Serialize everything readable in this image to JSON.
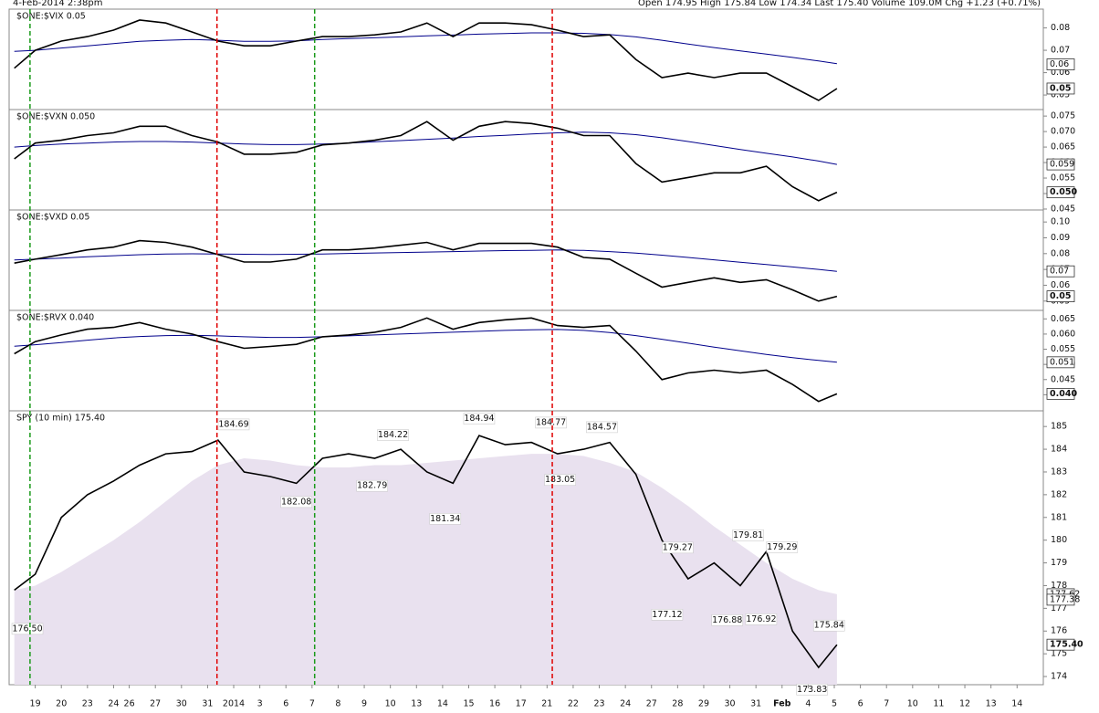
{
  "header": {
    "date": "4-Feb-2014 2:38pm",
    "quote": "Open 174.95  High 175.84  Low 174.34  Last 175.40  Volume 109.0M  Chg +1.23 (+0.71%)"
  },
  "vertical_lines": [
    {
      "x": -0.2,
      "color": "#1a9a1a"
    },
    {
      "x": 6.96,
      "color": "#e00000"
    },
    {
      "x": 10.7,
      "color": "#1a9a1a"
    },
    {
      "x": 19.8,
      "color": "#e00000"
    }
  ],
  "chart_data": [
    {
      "type": "line",
      "title": "$ONE:$VIX 0.05",
      "xlim": [
        -1,
        38.5
      ],
      "ylim": [
        0.0435,
        0.0884
      ],
      "yticks": [
        0.05,
        0.06,
        0.07,
        0.08
      ],
      "x": [
        -0.8,
        0,
        1,
        2,
        3,
        4,
        5,
        6,
        7,
        8,
        9,
        10,
        11,
        12,
        13,
        14,
        15,
        16,
        17,
        18,
        19,
        20,
        21,
        22,
        23,
        24,
        25,
        26,
        27,
        28,
        29,
        30,
        30.7
      ],
      "series": [
        {
          "color": "#00008b",
          "values": [
            0.0695,
            0.07,
            0.071,
            0.072,
            0.073,
            0.074,
            0.0745,
            0.0748,
            0.0745,
            0.074,
            0.074,
            0.0742,
            0.0748,
            0.0752,
            0.0756,
            0.076,
            0.0765,
            0.0768,
            0.0772,
            0.0775,
            0.0778,
            0.0778,
            0.0776,
            0.077,
            0.076,
            0.0745,
            0.0728,
            0.0712,
            0.0697,
            0.0683,
            0.0668,
            0.0652,
            0.064
          ]
        },
        {
          "color": "#000000",
          "values": [
            0.062,
            0.07,
            0.0741,
            0.0761,
            0.079,
            0.0835,
            0.0822,
            0.0782,
            0.0741,
            0.072,
            0.072,
            0.0741,
            0.0761,
            0.0761,
            0.0769,
            0.0782,
            0.0822,
            0.0761,
            0.0822,
            0.0822,
            0.0814,
            0.079,
            0.0761,
            0.0769,
            0.0659,
            0.0578,
            0.0598,
            0.0578,
            0.0598,
            0.0598,
            0.0537,
            0.0476,
            0.0529
          ]
        }
      ],
      "value_tags": [
        {
          "value": 0.0637,
          "label": "0.06"
        },
        {
          "value": 0.0529,
          "label": "0.05"
        }
      ]
    },
    {
      "type": "line",
      "title": "$ONE:$VXN 0.050",
      "xlim": [
        -1,
        38.5
      ],
      "ylim": [
        0.0447,
        0.0771
      ],
      "yticks": [
        0.045,
        {
          "value": 0.05,
          "label": "0.050"
        },
        0.055,
        {
          "value": 0.06,
          "label": "0.060"
        },
        0.065,
        {
          "value": 0.07,
          "label": "0.070"
        },
        0.075
      ],
      "x": [
        -0.8,
        0,
        1,
        2,
        3,
        4,
        5,
        6,
        7,
        8,
        9,
        10,
        11,
        12,
        13,
        14,
        15,
        16,
        17,
        18,
        19,
        20,
        21,
        22,
        23,
        24,
        25,
        26,
        27,
        28,
        29,
        30,
        30.7
      ],
      "series": [
        {
          "color": "#00008b",
          "values": [
            0.065,
            0.0655,
            0.066,
            0.0663,
            0.0666,
            0.0668,
            0.0668,
            0.0666,
            0.0663,
            0.066,
            0.0658,
            0.0658,
            0.066,
            0.0663,
            0.0667,
            0.0671,
            0.0675,
            0.0679,
            0.0684,
            0.0688,
            0.0692,
            0.0696,
            0.0698,
            0.0696,
            0.069,
            0.068,
            0.0668,
            0.0655,
            0.0642,
            0.063,
            0.0618,
            0.0605,
            0.0594
          ]
        },
        {
          "color": "#000000",
          "values": [
            0.0612,
            0.0663,
            0.0672,
            0.0687,
            0.0696,
            0.0717,
            0.0717,
            0.0687,
            0.0666,
            0.0627,
            0.0627,
            0.0633,
            0.0657,
            0.0663,
            0.0672,
            0.0687,
            0.0732,
            0.0672,
            0.0717,
            0.0732,
            0.0726,
            0.0711,
            0.0687,
            0.0687,
            0.0597,
            0.0537,
            0.0552,
            0.0567,
            0.0567,
            0.0588,
            0.0522,
            0.0477,
            0.0504
          ]
        }
      ],
      "value_tags": [
        {
          "value": 0.0594,
          "label": "0.059"
        },
        {
          "value": 0.0504,
          "label": "0.050"
        }
      ]
    },
    {
      "type": "line",
      "title": "$ONE:$VXD 0.05",
      "xlim": [
        -1,
        38.5
      ],
      "ylim": [
        0.0441,
        0.1076
      ],
      "yticks": [
        0.05,
        0.06,
        0.07,
        0.08,
        0.09,
        {
          "value": 0.1,
          "label": "0.10"
        }
      ],
      "x": [
        -0.8,
        0,
        1,
        2,
        3,
        4,
        5,
        6,
        7,
        8,
        9,
        10,
        11,
        12,
        13,
        14,
        15,
        16,
        17,
        18,
        19,
        20,
        21,
        22,
        23,
        24,
        25,
        26,
        27,
        28,
        29,
        30,
        30.7
      ],
      "series": [
        {
          "color": "#00008b",
          "values": [
            0.076,
            0.0765,
            0.0772,
            0.078,
            0.0787,
            0.0793,
            0.0797,
            0.0799,
            0.0798,
            0.0796,
            0.0795,
            0.0796,
            0.0798,
            0.0801,
            0.0804,
            0.0807,
            0.081,
            0.0813,
            0.0816,
            0.0819,
            0.0821,
            0.0823,
            0.082,
            0.0813,
            0.0803,
            0.079,
            0.0776,
            0.0761,
            0.0746,
            0.0731,
            0.0716,
            0.07,
            0.0688
          ]
        },
        {
          "color": "#000000",
          "values": [
            0.074,
            0.0765,
            0.0794,
            0.0824,
            0.0841,
            0.0882,
            0.0871,
            0.0841,
            0.0794,
            0.0747,
            0.0747,
            0.0765,
            0.0824,
            0.0824,
            0.0835,
            0.0853,
            0.0871,
            0.0824,
            0.0865,
            0.0865,
            0.0865,
            0.0841,
            0.0776,
            0.0765,
            0.0676,
            0.0588,
            0.0618,
            0.0647,
            0.0618,
            0.0635,
            0.0571,
            0.05,
            0.053
          ]
        }
      ],
      "value_tags": [
        {
          "value": 0.0688,
          "label": "0.07"
        },
        {
          "value": 0.053,
          "label": "0.05"
        }
      ]
    },
    {
      "type": "line",
      "title": "$ONE:$RVX 0.040",
      "xlim": [
        -1,
        38.5
      ],
      "ylim": [
        0.0347,
        0.0678
      ],
      "yticks": [
        {
          "value": 0.04,
          "label": "0.040"
        },
        0.045,
        {
          "value": 0.05,
          "label": "0.050"
        },
        0.055,
        {
          "value": 0.06,
          "label": "0.060"
        },
        0.065
      ],
      "x": [
        -0.8,
        0,
        1,
        2,
        3,
        4,
        5,
        6,
        7,
        8,
        9,
        10,
        11,
        12,
        13,
        14,
        15,
        16,
        17,
        18,
        19,
        20,
        21,
        22,
        23,
        24,
        25,
        26,
        27,
        28,
        29,
        30,
        30.7
      ],
      "series": [
        {
          "color": "#00008b",
          "values": [
            0.056,
            0.0565,
            0.0572,
            0.058,
            0.0587,
            0.0592,
            0.0595,
            0.0596,
            0.0594,
            0.0591,
            0.0589,
            0.0589,
            0.0591,
            0.0594,
            0.0597,
            0.06,
            0.0603,
            0.0606,
            0.0609,
            0.0612,
            0.0614,
            0.0615,
            0.0612,
            0.0605,
            0.0595,
            0.0583,
            0.057,
            0.0557,
            0.0545,
            0.0533,
            0.0522,
            0.0513,
            0.0507
          ]
        },
        {
          "color": "#000000",
          "values": [
            0.0535,
            0.0575,
            0.0597,
            0.0616,
            0.0622,
            0.0638,
            0.0616,
            0.06,
            0.0575,
            0.0553,
            0.0559,
            0.0566,
            0.0591,
            0.0597,
            0.0606,
            0.0622,
            0.0653,
            0.0616,
            0.0638,
            0.0647,
            0.0653,
            0.0628,
            0.0622,
            0.0628,
            0.0544,
            0.045,
            0.0472,
            0.0481,
            0.0472,
            0.0481,
            0.0434,
            0.0378,
            0.0403
          ]
        }
      ],
      "value_tags": [
        {
          "value": 0.0507,
          "label": "0.051"
        },
        {
          "value": 0.0403,
          "label": "0.040"
        }
      ]
    },
    {
      "type": "line",
      "title": "SPY (10 min) 175.40",
      "xlim": [
        -1,
        38.5
      ],
      "ylim": [
        173.64,
        185.69
      ],
      "yticks": [
        174,
        175,
        176,
        177,
        178,
        179,
        180,
        181,
        182,
        183,
        184,
        185
      ],
      "xticks": [
        {
          "value": 0,
          "label": "19"
        },
        {
          "value": 1,
          "label": "20"
        },
        {
          "value": 2,
          "label": "23"
        },
        {
          "value": 3,
          "label": "24"
        },
        {
          "value": 3.6,
          "label": "26"
        },
        {
          "value": 4.6,
          "label": "27"
        },
        {
          "value": 5.6,
          "label": "30"
        },
        {
          "value": 6.6,
          "label": "31"
        },
        {
          "value": 7.6,
          "label": "2014"
        },
        {
          "value": 8.6,
          "label": "3"
        },
        {
          "value": 9.6,
          "label": "6"
        },
        {
          "value": 10.6,
          "label": "7"
        },
        {
          "value": 11.6,
          "label": "8"
        },
        {
          "value": 12.6,
          "label": "9"
        },
        {
          "value": 13.6,
          "label": "10"
        },
        {
          "value": 14.6,
          "label": "13"
        },
        {
          "value": 15.6,
          "label": "14"
        },
        {
          "value": 16.6,
          "label": "15"
        },
        {
          "value": 17.6,
          "label": "16"
        },
        {
          "value": 18.6,
          "label": "17"
        },
        {
          "value": 19.6,
          "label": "21"
        },
        {
          "value": 20.6,
          "label": "22"
        },
        {
          "value": 21.6,
          "label": "23"
        },
        {
          "value": 22.6,
          "label": "24"
        },
        {
          "value": 23.6,
          "label": "27"
        },
        {
          "value": 24.6,
          "label": "28"
        },
        {
          "value": 25.6,
          "label": "29"
        },
        {
          "value": 26.6,
          "label": "30"
        },
        {
          "value": 27.6,
          "label": "31"
        },
        {
          "value": 28.6,
          "label": "Feb"
        },
        {
          "value": 29.6,
          "label": "4"
        },
        {
          "value": 30.6,
          "label": "5"
        },
        {
          "value": 31.6,
          "label": "6"
        },
        {
          "value": 32.6,
          "label": "7"
        },
        {
          "value": 33.6,
          "label": "10"
        },
        {
          "value": 34.6,
          "label": "11"
        },
        {
          "value": 35.6,
          "label": "12"
        },
        {
          "value": 36.6,
          "label": "13"
        },
        {
          "value": 37.6,
          "label": "14"
        }
      ],
      "x": [
        -0.8,
        0,
        1,
        2,
        3,
        4,
        5,
        6,
        7,
        8,
        9,
        10,
        11,
        12,
        13,
        14,
        15,
        16,
        17,
        18,
        19,
        20,
        21,
        22,
        23,
        24,
        25,
        26,
        27,
        28,
        29,
        30,
        30.7
      ],
      "series": [
        {
          "color": "#e9e1ef",
          "fill": true,
          "values": [
            177.8,
            178.0,
            178.6,
            179.3,
            180.0,
            180.8,
            181.7,
            182.6,
            183.3,
            183.6,
            183.5,
            183.3,
            183.2,
            183.2,
            183.3,
            183.3,
            183.4,
            183.5,
            183.6,
            183.7,
            183.8,
            183.8,
            183.7,
            183.4,
            183.0,
            182.3,
            181.5,
            180.6,
            179.8,
            179.0,
            178.3,
            177.8,
            177.62
          ]
        },
        {
          "color": "#000000",
          "values": [
            177.8,
            178.5,
            181.0,
            182.0,
            182.6,
            183.3,
            183.8,
            183.9,
            184.4,
            183.0,
            182.8,
            182.5,
            183.6,
            183.8,
            183.6,
            184.0,
            183.0,
            182.5,
            184.6,
            184.2,
            184.3,
            183.8,
            184.0,
            184.3,
            182.9,
            180.0,
            178.3,
            179.0,
            178.0,
            179.5,
            176.0,
            174.4,
            175.4
          ]
        }
      ],
      "annotations": [
        {
          "x": -0.3,
          "value": 176.5,
          "label": "176.50"
        },
        {
          "x": 7.6,
          "value": 184.69,
          "label": "184.69"
        },
        {
          "x": 10.0,
          "value": 182.08,
          "label": "182.08"
        },
        {
          "x": 12.9,
          "value": 182.79,
          "label": "182.79"
        },
        {
          "x": 13.7,
          "value": 184.22,
          "label": "184.22"
        },
        {
          "x": 15.7,
          "value": 181.34,
          "label": "181.34"
        },
        {
          "x": 17.0,
          "value": 184.94,
          "label": "184.94"
        },
        {
          "x": 19.75,
          "value": 184.77,
          "label": "184.77"
        },
        {
          "x": 20.1,
          "value": 183.05,
          "label": "183.05"
        },
        {
          "x": 21.7,
          "value": 184.57,
          "label": "184.57"
        },
        {
          "x": 24.2,
          "value": 177.12,
          "label": "177.12"
        },
        {
          "x": 24.6,
          "value": 179.27,
          "label": "179.27"
        },
        {
          "x": 26.5,
          "value": 176.88,
          "label": "176.88"
        },
        {
          "x": 27.3,
          "value": 179.81,
          "label": "179.81"
        },
        {
          "x": 27.8,
          "value": 176.92,
          "label": "176.92"
        },
        {
          "x": 28.6,
          "value": 179.29,
          "label": "179.29"
        },
        {
          "x": 29.75,
          "value": 173.83,
          "label": "173.83"
        },
        {
          "x": 30.4,
          "value": 175.84,
          "label": "175.84"
        }
      ],
      "value_tags": [
        {
          "value": 177.62,
          "label": "177.62"
        },
        {
          "value": 177.38,
          "label": "177.38"
        },
        {
          "value": 175.4,
          "label": "175.40"
        }
      ]
    }
  ]
}
